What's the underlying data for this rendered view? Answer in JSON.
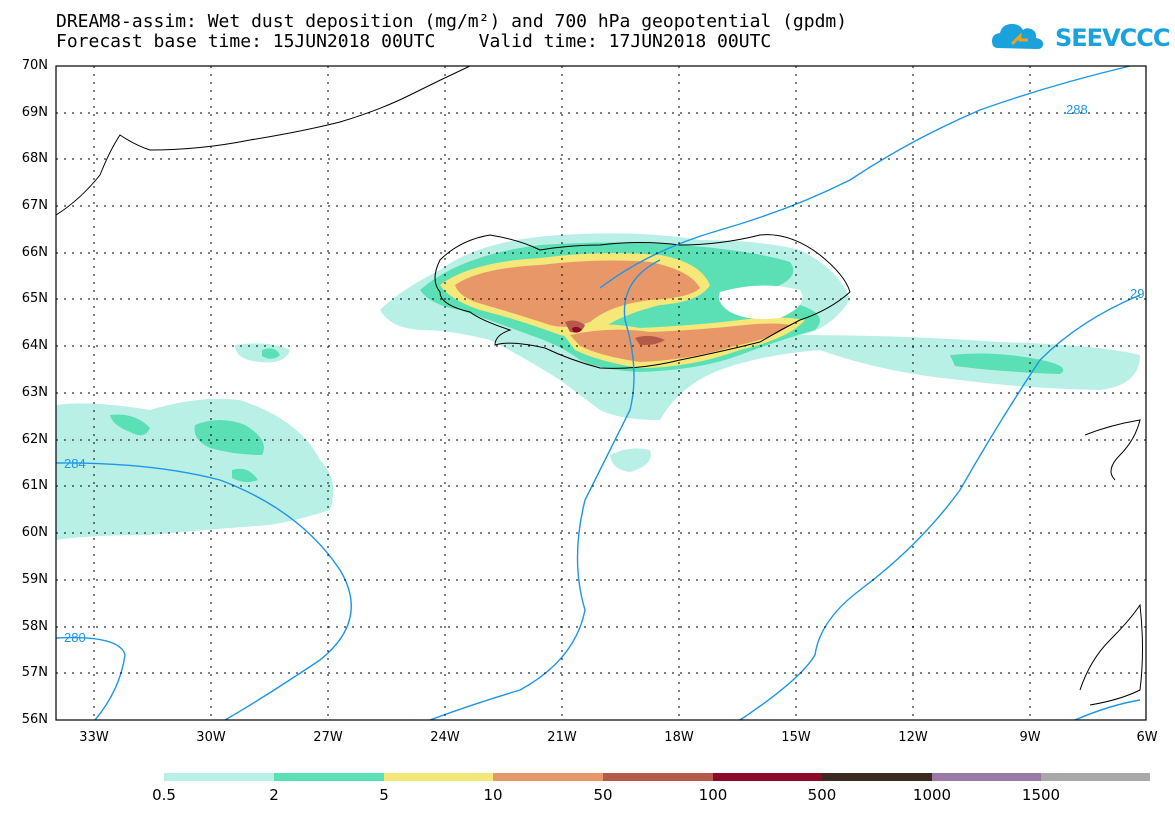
{
  "title": {
    "line1": "DREAM8-assim: Wet dust deposition (mg/m²) and 700 hPa geopotential (gpdm)",
    "line2": "Forecast base time: 15JUN2018 00UTC    Valid time: 17JUN2018 00UTC"
  },
  "logo": {
    "text": "SEEVCCC",
    "icon": "cloud-icon"
  },
  "map": {
    "lat_labels": [
      "70N",
      "69N",
      "68N",
      "67N",
      "66N",
      "65N",
      "64N",
      "63N",
      "62N",
      "61N",
      "60N",
      "59N",
      "58N",
      "57N",
      "56N"
    ],
    "lon_labels": [
      "33W",
      "30W",
      "27W",
      "24W",
      "21W",
      "18W",
      "15W",
      "12W",
      "9W",
      "6W"
    ],
    "contour_labels": [
      "288",
      "29",
      "284",
      "280"
    ]
  },
  "colorbar": {
    "labels": [
      "0.5",
      "2",
      "5",
      "10",
      "50",
      "100",
      "500",
      "1000",
      "1500"
    ],
    "colors": [
      "#b8f0e6",
      "#5ae0b4",
      "#f5e878",
      "#e89868",
      "#b45a4a",
      "#8c0a28",
      "#3c2a1e",
      "#9a78a8",
      "#a8a8a8"
    ]
  },
  "colors": {
    "contour": "#1e96e6",
    "coast": "#000000"
  }
}
